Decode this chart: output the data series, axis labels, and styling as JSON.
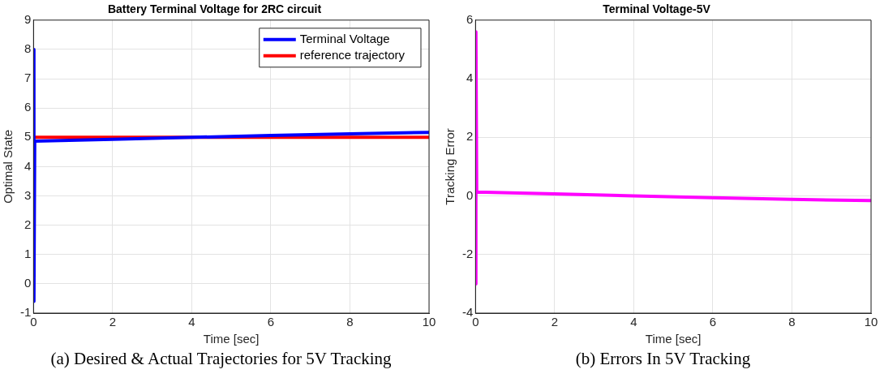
{
  "chart_data": [
    {
      "type": "line",
      "title": "Battery Terminal Voltage for 2RC circuit",
      "xlabel": "Time [sec]",
      "ylabel": "Optimal State",
      "xlim": [
        0,
        10
      ],
      "xticks": [
        0,
        2,
        4,
        6,
        8,
        10
      ],
      "ylim": [
        -1,
        9
      ],
      "yticks": [
        -1,
        0,
        1,
        2,
        3,
        4,
        5,
        6,
        7,
        8,
        9
      ],
      "grid": true,
      "legend": "top right",
      "line_style": "solid",
      "annotations": [
        "(a) Desired & Actual Trajectories for 5V Tracking"
      ],
      "series": [
        {
          "name": "Terminal Voltage",
          "color": "#0000ff",
          "x": [
            0,
            0.01,
            0.03,
            2,
            4,
            6,
            8,
            10
          ],
          "values": [
            8,
            -0.6,
            4.87,
            4.93,
            5.0,
            5.06,
            5.12,
            5.17
          ]
        },
        {
          "name": "reference trajectory",
          "color": "#ff0000",
          "x": [
            0,
            10
          ],
          "values": [
            5,
            5
          ]
        }
      ]
    },
    {
      "type": "line",
      "title": "Terminal Voltage-5V",
      "xlabel": "Time [sec]",
      "ylabel": "Tracking Error",
      "xlim": [
        0,
        10
      ],
      "xticks": [
        0,
        2,
        4,
        6,
        8,
        10
      ],
      "ylim": [
        -4,
        6
      ],
      "yticks": [
        -4,
        -2,
        0,
        2,
        4,
        6
      ],
      "grid": true,
      "line_style": "solid",
      "annotations": [
        "(b) Errors In 5V Tracking"
      ],
      "series": [
        {
          "color": "#ff00ff",
          "x": [
            0,
            0.01,
            0.03,
            2,
            4,
            6,
            8,
            10
          ],
          "values": [
            -3,
            5.6,
            0.13,
            0.07,
            0.0,
            -0.06,
            -0.12,
            -0.16
          ]
        }
      ]
    }
  ]
}
